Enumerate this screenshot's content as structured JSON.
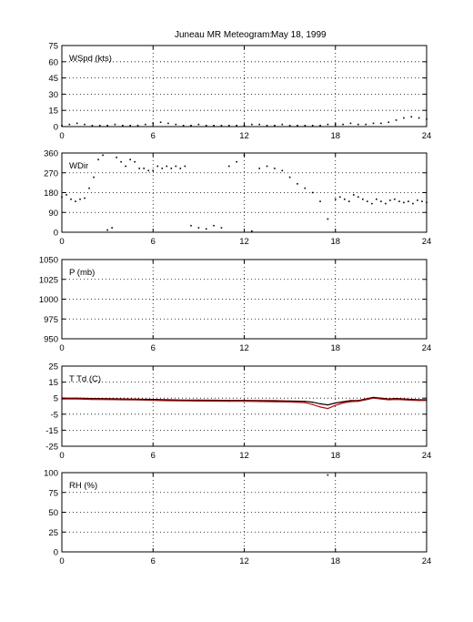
{
  "title": {
    "station": "Juneau MR Meteogram:",
    "date": "May 18, 1999"
  },
  "chart_data": [
    {
      "type": "scatter",
      "label": "WSpd (kts)",
      "xlim": [
        0,
        24
      ],
      "ylim": [
        0,
        75
      ],
      "xticks": [
        0,
        6,
        12,
        18,
        24
      ],
      "yticks": [
        0,
        15,
        30,
        45,
        60,
        75
      ],
      "grid": true,
      "series": [
        {
          "color": "#000000",
          "x": [
            0,
            0.5,
            1,
            1.5,
            2,
            2.5,
            3,
            3.5,
            4,
            4.5,
            5,
            5.5,
            6,
            6.5,
            7,
            7.5,
            8,
            8.5,
            9,
            9.5,
            10,
            10.5,
            11,
            11.5,
            12,
            12.5,
            13,
            13.5,
            14,
            14.5,
            15,
            15.5,
            16,
            16.5,
            17,
            17.5,
            18,
            18.5,
            19,
            19.5,
            20,
            20.5,
            21,
            21.5,
            22,
            22.5,
            23,
            23.5,
            24
          ],
          "y": [
            1,
            2,
            3,
            2,
            1,
            1,
            1,
            2,
            1,
            1,
            1,
            2,
            3,
            4,
            3,
            2,
            1,
            1,
            2,
            1,
            1,
            1,
            1,
            1,
            1,
            2,
            2,
            1,
            1,
            2,
            1,
            1,
            1,
            1,
            1,
            2,
            2,
            2,
            3,
            2,
            2,
            3,
            3,
            4,
            6,
            8,
            9,
            8,
            7
          ]
        }
      ]
    },
    {
      "type": "scatter",
      "label": "WDir",
      "xlim": [
        0,
        24
      ],
      "ylim": [
        0,
        360
      ],
      "xticks": [
        0,
        6,
        12,
        18,
        24
      ],
      "yticks": [
        0,
        90,
        180,
        270,
        360
      ],
      "grid": true,
      "series": [
        {
          "color": "#000000",
          "x": [
            0,
            0.3,
            0.6,
            0.9,
            1.2,
            1.5,
            1.8,
            2.1,
            2.4,
            2.7,
            3,
            3.3,
            3.6,
            3.9,
            4.2,
            4.5,
            4.8,
            5.1,
            5.4,
            5.7,
            6,
            6.3,
            6.6,
            6.9,
            7.2,
            7.5,
            7.8,
            8.1,
            8.5,
            9,
            9.5,
            10,
            10.5,
            11,
            11.5,
            12,
            12.5,
            13,
            13.5,
            14,
            14.5,
            15,
            15.5,
            16,
            16.5,
            17,
            17.5,
            18,
            18.3,
            18.6,
            18.9,
            19.2,
            19.5,
            19.8,
            20.1,
            20.4,
            20.7,
            21,
            21.3,
            21.6,
            21.9,
            22.2,
            22.5,
            22.8,
            23.1,
            23.4,
            23.7,
            24
          ],
          "y": [
            160,
            170,
            150,
            140,
            150,
            155,
            200,
            250,
            330,
            350,
            10,
            20,
            340,
            320,
            300,
            330,
            320,
            290,
            290,
            280,
            280,
            300,
            290,
            300,
            290,
            300,
            290,
            300,
            30,
            20,
            15,
            30,
            20,
            300,
            320,
            350,
            5,
            290,
            300,
            290,
            280,
            250,
            220,
            200,
            180,
            140,
            60,
            150,
            160,
            150,
            140,
            170,
            160,
            150,
            140,
            130,
            150,
            140,
            130,
            145,
            150,
            140,
            135,
            140,
            130,
            145,
            140,
            135
          ]
        }
      ]
    },
    {
      "type": "line",
      "label": "P (mb)",
      "xlim": [
        0,
        24
      ],
      "ylim": [
        950,
        1050
      ],
      "xticks": [
        0,
        6,
        12,
        18,
        24
      ],
      "yticks": [
        950,
        975,
        1000,
        1025,
        1050
      ],
      "grid": true,
      "series": []
    },
    {
      "type": "line",
      "label": "T Td (C)",
      "xlim": [
        0,
        24
      ],
      "ylim": [
        -25,
        25
      ],
      "xticks": [
        0,
        6,
        12,
        18,
        24
      ],
      "yticks": [
        -25,
        -15,
        -5,
        5,
        15,
        25
      ],
      "grid": true,
      "series": [
        {
          "color": "#000000",
          "x": [
            0,
            1,
            2,
            3,
            4,
            5,
            6,
            7,
            8,
            9,
            10,
            11,
            12,
            13,
            14,
            15,
            16,
            16.5,
            17,
            17.5,
            18,
            18.5,
            19,
            19.5,
            20,
            20.5,
            21,
            21.5,
            22,
            22.5,
            23,
            23.5,
            24
          ],
          "y": [
            5,
            5,
            4.8,
            4.6,
            4.5,
            4.4,
            4.2,
            4,
            3.8,
            3.8,
            3.7,
            3.6,
            3.6,
            3.5,
            3.4,
            3.2,
            3,
            2.5,
            1.5,
            0.8,
            2,
            2.8,
            3.5,
            3.5,
            4.5,
            5.5,
            5,
            4.5,
            4.8,
            4.5,
            4.2,
            4,
            4
          ]
        },
        {
          "color": "#cc0000",
          "x": [
            0,
            1,
            2,
            3,
            4,
            5,
            6,
            7,
            8,
            9,
            10,
            11,
            12,
            13,
            14,
            15,
            16,
            16.5,
            17,
            17.5,
            18,
            18.5,
            19,
            19.5,
            20,
            20.5,
            21,
            21.5,
            22,
            22.5,
            23,
            23.5,
            24
          ],
          "y": [
            4.5,
            4.5,
            4.2,
            4.1,
            4,
            3.9,
            3.6,
            3.4,
            3.3,
            3.2,
            3.1,
            3,
            3,
            2.9,
            2.8,
            2.6,
            2.2,
            1,
            -0.5,
            -1.5,
            0.5,
            2,
            2.8,
            3,
            4,
            5,
            4.5,
            4,
            4.2,
            4,
            3.7,
            3.5,
            3.5
          ]
        }
      ]
    },
    {
      "type": "scatter",
      "label": "RH (%)",
      "xlim": [
        0,
        24
      ],
      "ylim": [
        0,
        100
      ],
      "xticks": [
        0,
        6,
        12,
        18,
        24
      ],
      "yticks": [
        0,
        25,
        50,
        75,
        100
      ],
      "grid": true,
      "series": [
        {
          "color": "#000000",
          "x": [
            17.5
          ],
          "y": [
            97
          ]
        }
      ]
    }
  ]
}
